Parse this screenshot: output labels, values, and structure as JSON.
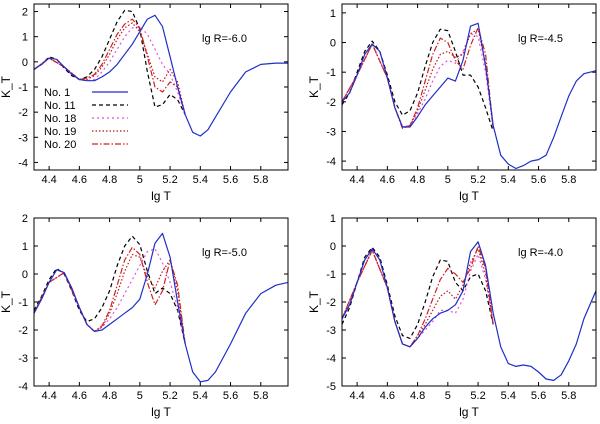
{
  "legend_entries": [
    {
      "label": "No. 1",
      "color": "#1f2fc8",
      "dash": ""
    },
    {
      "label": "No. 11",
      "color": "#000000",
      "dash": "4,3"
    },
    {
      "label": "No. 18",
      "color": "#e050e0",
      "dash": "2,3"
    },
    {
      "label": "No. 19",
      "color": "#c01818",
      "dash": "1.5,2"
    },
    {
      "label": "No. 20",
      "color": "#d02020",
      "dash": "6,2,1.5,2"
    }
  ],
  "chart_data": [
    {
      "type": "line",
      "panel": "top-left",
      "annotation": "lg R=-6.0",
      "xlabel": "lg T",
      "ylabel": "K_T",
      "xlim": [
        4.3,
        5.98
      ],
      "ylim": [
        -4.3,
        2.3
      ],
      "xticks": [
        "4.4",
        "4.6",
        "4.8",
        "5",
        "5.2",
        "5.4",
        "5.6",
        "5.8"
      ],
      "yticks": [
        "-4",
        "-3",
        "-2",
        "-1",
        "0",
        "1",
        "2"
      ],
      "show_legend": true,
      "series": [
        {
          "name": "No. 1",
          "x": [
            4.3,
            4.35,
            4.4,
            4.45,
            4.5,
            4.55,
            4.6,
            4.65,
            4.7,
            4.75,
            4.8,
            4.85,
            4.9,
            4.95,
            5.0,
            5.05,
            5.1,
            5.15,
            5.2,
            5.25,
            5.3,
            5.35,
            5.4,
            5.45,
            5.5,
            5.6,
            5.7,
            5.8,
            5.9,
            5.98
          ],
          "y": [
            -0.3,
            -0.1,
            0.15,
            0.1,
            -0.2,
            -0.5,
            -0.7,
            -0.75,
            -0.75,
            -0.6,
            -0.4,
            -0.1,
            0.3,
            0.7,
            1.2,
            1.7,
            1.85,
            1.4,
            0.2,
            -1.0,
            -2.1,
            -2.8,
            -2.95,
            -2.7,
            -2.2,
            -1.2,
            -0.4,
            -0.1,
            -0.05,
            -0.05
          ]
        },
        {
          "name": "No. 11",
          "x": [
            4.3,
            4.35,
            4.4,
            4.45,
            4.5,
            4.55,
            4.6,
            4.65,
            4.7,
            4.75,
            4.8,
            4.85,
            4.9,
            4.95,
            5.0,
            5.05,
            5.1,
            5.15,
            5.2,
            5.25,
            5.3
          ],
          "y": [
            -0.3,
            -0.1,
            0.2,
            0.1,
            -0.25,
            -0.55,
            -0.7,
            -0.6,
            -0.3,
            0.2,
            0.9,
            1.6,
            2.05,
            2.0,
            1.3,
            -0.4,
            -1.8,
            -1.7,
            -1.3,
            -1.5,
            -2.1
          ]
        },
        {
          "name": "No. 18",
          "x": [
            4.3,
            4.4,
            4.5,
            4.6,
            4.65,
            4.7,
            4.75,
            4.8,
            4.85,
            4.9,
            4.95,
            5.0,
            5.05,
            5.1,
            5.15,
            5.2,
            5.25,
            5.3
          ],
          "y": [
            -0.3,
            0.15,
            -0.2,
            -0.7,
            -0.75,
            -0.7,
            -0.4,
            0.0,
            0.5,
            1.0,
            1.35,
            1.4,
            1.1,
            0.5,
            -0.1,
            -0.5,
            -1.2,
            -2.1
          ]
        },
        {
          "name": "No. 19",
          "x": [
            4.3,
            4.4,
            4.5,
            4.6,
            4.65,
            4.7,
            4.75,
            4.8,
            4.85,
            4.9,
            4.95,
            5.0,
            5.05,
            5.1,
            5.15,
            5.2,
            5.25,
            5.3
          ],
          "y": [
            -0.3,
            0.15,
            -0.2,
            -0.7,
            -0.7,
            -0.55,
            -0.2,
            0.3,
            0.9,
            1.35,
            1.55,
            1.2,
            0.3,
            -0.6,
            -0.8,
            -0.3,
            -0.8,
            -2.1
          ]
        },
        {
          "name": "No. 20",
          "x": [
            4.3,
            4.4,
            4.5,
            4.6,
            4.65,
            4.7,
            4.75,
            4.8,
            4.85,
            4.9,
            4.95,
            5.0,
            5.05,
            5.1,
            5.15,
            5.2,
            5.25,
            5.3
          ],
          "y": [
            -0.3,
            0.15,
            -0.2,
            -0.7,
            -0.65,
            -0.5,
            -0.1,
            0.5,
            1.1,
            1.5,
            1.7,
            1.35,
            0.2,
            -1.0,
            -1.2,
            -0.8,
            -1.0,
            -2.1
          ]
        }
      ]
    },
    {
      "type": "line",
      "panel": "top-right",
      "annotation": "lg R=-4.5",
      "xlabel": "lg T",
      "ylabel": "K_T",
      "xlim": [
        4.3,
        5.98
      ],
      "ylim": [
        -4.3,
        1.3
      ],
      "xticks": [
        "4.4",
        "4.6",
        "4.8",
        "5",
        "5.2",
        "5.4",
        "5.6",
        "5.8"
      ],
      "yticks": [
        "-4",
        "-3",
        "-2",
        "-1",
        "0",
        "1"
      ],
      "show_legend": false,
      "series": [
        {
          "name": "No. 1",
          "x": [
            4.3,
            4.35,
            4.4,
            4.45,
            4.5,
            4.55,
            4.6,
            4.65,
            4.7,
            4.75,
            4.8,
            4.85,
            4.9,
            4.95,
            5.0,
            5.05,
            5.1,
            5.15,
            5.2,
            5.25,
            5.3,
            5.35,
            5.4,
            5.45,
            5.5,
            5.55,
            5.6,
            5.65,
            5.7,
            5.75,
            5.8,
            5.85,
            5.9,
            5.98
          ],
          "y": [
            -2.0,
            -1.7,
            -1.1,
            -0.4,
            -0.05,
            -0.3,
            -1.2,
            -2.2,
            -2.85,
            -2.85,
            -2.5,
            -2.1,
            -1.8,
            -1.5,
            -1.2,
            -1.3,
            -0.6,
            0.55,
            0.65,
            -0.8,
            -2.8,
            -3.8,
            -4.1,
            -4.25,
            -4.15,
            -4.0,
            -3.95,
            -3.8,
            -3.2,
            -2.5,
            -1.8,
            -1.3,
            -1.05,
            -0.95
          ]
        },
        {
          "name": "No. 11",
          "x": [
            4.3,
            4.35,
            4.4,
            4.45,
            4.5,
            4.55,
            4.6,
            4.65,
            4.7,
            4.75,
            4.8,
            4.85,
            4.9,
            4.95,
            5.0,
            5.05,
            5.1,
            5.15,
            5.2,
            5.25,
            5.3
          ],
          "y": [
            -2.1,
            -1.7,
            -1.0,
            -0.3,
            0.05,
            -0.3,
            -1.1,
            -2.0,
            -2.45,
            -2.3,
            -1.7,
            -0.8,
            0.0,
            0.45,
            0.4,
            -0.3,
            -1.1,
            -1.1,
            -1.5,
            -2.2,
            -3.0
          ]
        },
        {
          "name": "No. 18",
          "x": [
            4.3,
            4.4,
            4.5,
            4.6,
            4.65,
            4.7,
            4.75,
            4.8,
            4.85,
            4.9,
            4.95,
            5.0,
            5.05,
            5.1,
            5.15,
            5.2,
            5.25,
            5.3
          ],
          "y": [
            -2.0,
            -1.1,
            -0.05,
            -1.2,
            -2.2,
            -2.85,
            -2.8,
            -2.4,
            -1.9,
            -1.3,
            -0.8,
            -0.6,
            -0.7,
            -0.3,
            0.3,
            0.2,
            -1.0,
            -2.9
          ]
        },
        {
          "name": "No. 19",
          "x": [
            4.3,
            4.4,
            4.5,
            4.6,
            4.65,
            4.7,
            4.75,
            4.8,
            4.85,
            4.9,
            4.95,
            5.0,
            5.05,
            5.1,
            5.15,
            5.2,
            5.25,
            5.3
          ],
          "y": [
            -2.0,
            -1.1,
            -0.05,
            -1.2,
            -2.2,
            -2.85,
            -2.8,
            -2.3,
            -1.6,
            -0.9,
            -0.4,
            -0.3,
            -0.5,
            -0.4,
            0.3,
            0.45,
            -0.7,
            -2.9
          ]
        },
        {
          "name": "No. 20",
          "x": [
            4.3,
            4.4,
            4.5,
            4.6,
            4.65,
            4.7,
            4.75,
            4.8,
            4.85,
            4.9,
            4.95,
            5.0,
            5.05,
            5.1,
            5.15,
            5.2,
            5.25,
            5.3
          ],
          "y": [
            -2.0,
            -1.1,
            -0.05,
            -1.2,
            -2.2,
            -2.9,
            -2.8,
            -2.2,
            -1.3,
            -0.4,
            0.15,
            0.0,
            -0.6,
            -0.9,
            -0.1,
            0.5,
            -0.4,
            -2.9
          ]
        }
      ]
    },
    {
      "type": "line",
      "panel": "bottom-left",
      "annotation": "lg R=-5.0",
      "xlabel": "lg T",
      "ylabel": "K_T",
      "xlim": [
        4.3,
        5.98
      ],
      "ylim": [
        -4.0,
        2.0
      ],
      "xticks": [
        "4.4",
        "4.6",
        "4.8",
        "5",
        "5.2",
        "5.4",
        "5.6",
        "5.8"
      ],
      "yticks": [
        "-4",
        "-3",
        "-2",
        "-1",
        "0",
        "1",
        "2"
      ],
      "show_legend": false,
      "series": [
        {
          "name": "No. 1",
          "x": [
            4.3,
            4.35,
            4.4,
            4.45,
            4.5,
            4.55,
            4.6,
            4.65,
            4.7,
            4.75,
            4.8,
            4.85,
            4.9,
            4.95,
            5.0,
            5.05,
            5.1,
            5.15,
            5.2,
            5.25,
            5.3,
            5.35,
            5.4,
            5.45,
            5.5,
            5.6,
            5.7,
            5.8,
            5.9,
            5.98
          ],
          "y": [
            -1.4,
            -0.9,
            -0.3,
            0.15,
            0.05,
            -0.5,
            -1.2,
            -1.8,
            -2.05,
            -2.0,
            -1.8,
            -1.6,
            -1.4,
            -1.2,
            -0.9,
            0.0,
            1.1,
            1.45,
            0.6,
            -1.0,
            -2.5,
            -3.5,
            -3.85,
            -3.8,
            -3.5,
            -2.5,
            -1.4,
            -0.7,
            -0.4,
            -0.3
          ]
        },
        {
          "name": "No. 11",
          "x": [
            4.3,
            4.35,
            4.4,
            4.45,
            4.5,
            4.55,
            4.6,
            4.65,
            4.7,
            4.75,
            4.8,
            4.85,
            4.9,
            4.95,
            5.0,
            5.05,
            5.1,
            5.15,
            5.2,
            5.25,
            5.3
          ],
          "y": [
            -1.3,
            -0.8,
            -0.2,
            0.2,
            0.0,
            -0.6,
            -1.3,
            -1.7,
            -1.6,
            -1.2,
            -0.6,
            0.3,
            1.0,
            1.35,
            1.05,
            0.1,
            -0.7,
            -0.5,
            -0.7,
            -1.3,
            -2.5
          ]
        },
        {
          "name": "No. 18",
          "x": [
            4.3,
            4.4,
            4.5,
            4.6,
            4.65,
            4.7,
            4.75,
            4.8,
            4.85,
            4.9,
            4.95,
            5.0,
            5.05,
            5.1,
            5.15,
            5.2,
            5.25,
            5.3
          ],
          "y": [
            -1.4,
            -0.3,
            0.05,
            -1.2,
            -1.8,
            -2.05,
            -1.9,
            -1.6,
            -1.2,
            -0.7,
            -0.2,
            0.3,
            0.8,
            0.9,
            0.4,
            -0.3,
            -1.2,
            -2.5
          ]
        },
        {
          "name": "No. 19",
          "x": [
            4.3,
            4.4,
            4.5,
            4.6,
            4.65,
            4.7,
            4.75,
            4.8,
            4.85,
            4.9,
            4.95,
            5.0,
            5.05,
            5.1,
            5.15,
            5.2,
            5.25,
            5.3
          ],
          "y": [
            -1.4,
            -0.3,
            0.05,
            -1.2,
            -1.8,
            -2.05,
            -1.9,
            -1.4,
            -0.7,
            0.1,
            0.7,
            0.6,
            -0.1,
            -0.5,
            0.1,
            0.5,
            -0.6,
            -2.5
          ]
        },
        {
          "name": "No. 20",
          "x": [
            4.3,
            4.4,
            4.5,
            4.6,
            4.65,
            4.7,
            4.75,
            4.8,
            4.85,
            4.9,
            4.95,
            5.0,
            5.05,
            5.1,
            5.15,
            5.2,
            5.25,
            5.3
          ],
          "y": [
            -1.4,
            -0.3,
            0.05,
            -1.2,
            -1.8,
            -2.05,
            -1.85,
            -1.3,
            -0.4,
            0.5,
            0.95,
            0.7,
            -0.3,
            -1.1,
            -0.6,
            0.5,
            -0.4,
            -2.5
          ]
        }
      ]
    },
    {
      "type": "line",
      "panel": "bottom-right",
      "annotation": "lg R=-4.0",
      "xlabel": "lg T",
      "ylabel": "K_T",
      "xlim": [
        4.3,
        5.98
      ],
      "ylim": [
        -5.0,
        1.0
      ],
      "xticks": [
        "4.4",
        "4.6",
        "4.8",
        "5",
        "5.2",
        "5.4",
        "5.6",
        "5.8"
      ],
      "yticks": [
        "-5",
        "-4",
        "-3",
        "-2",
        "-1",
        "0",
        "1"
      ],
      "show_legend": false,
      "series": [
        {
          "name": "No. 1",
          "x": [
            4.3,
            4.35,
            4.4,
            4.45,
            4.5,
            4.55,
            4.6,
            4.65,
            4.7,
            4.75,
            4.8,
            4.85,
            4.9,
            4.95,
            5.0,
            5.05,
            5.1,
            5.15,
            5.2,
            5.25,
            5.3,
            5.35,
            5.4,
            5.45,
            5.5,
            5.55,
            5.6,
            5.65,
            5.7,
            5.75,
            5.8,
            5.85,
            5.9,
            5.98
          ],
          "y": [
            -2.6,
            -2.1,
            -1.3,
            -0.5,
            -0.1,
            -0.5,
            -1.5,
            -2.7,
            -3.5,
            -3.6,
            -3.3,
            -2.9,
            -2.6,
            -2.4,
            -2.3,
            -2.1,
            -1.6,
            -0.2,
            0.15,
            -0.7,
            -2.4,
            -3.6,
            -4.2,
            -4.3,
            -4.25,
            -4.3,
            -4.5,
            -4.75,
            -4.8,
            -4.6,
            -4.1,
            -3.5,
            -2.6,
            -1.6
          ]
        },
        {
          "name": "No. 11",
          "x": [
            4.3,
            4.35,
            4.4,
            4.45,
            4.5,
            4.55,
            4.6,
            4.65,
            4.7,
            4.75,
            4.8,
            4.85,
            4.9,
            4.95,
            5.0,
            5.05,
            5.1,
            5.15,
            5.2,
            5.25,
            5.3
          ],
          "y": [
            -2.8,
            -2.2,
            -1.3,
            -0.4,
            -0.05,
            -0.4,
            -1.4,
            -2.5,
            -3.2,
            -3.3,
            -2.8,
            -2.0,
            -1.1,
            -0.5,
            -0.55,
            -1.3,
            -1.6,
            -1.1,
            -1.0,
            -1.6,
            -2.8
          ]
        },
        {
          "name": "No. 18",
          "x": [
            4.3,
            4.4,
            4.5,
            4.6,
            4.65,
            4.7,
            4.75,
            4.8,
            4.85,
            4.9,
            4.95,
            5.0,
            5.05,
            5.1,
            5.15,
            5.2,
            5.25,
            5.3
          ],
          "y": [
            -2.6,
            -1.3,
            -0.15,
            -1.5,
            -2.7,
            -3.5,
            -3.6,
            -3.3,
            -3.0,
            -2.7,
            -2.3,
            -2.3,
            -2.4,
            -1.9,
            -0.9,
            -0.3,
            -1.2,
            -2.8
          ]
        },
        {
          "name": "No. 19",
          "x": [
            4.3,
            4.4,
            4.5,
            4.6,
            4.65,
            4.7,
            4.75,
            4.8,
            4.85,
            4.9,
            4.95,
            5.0,
            5.05,
            5.1,
            5.15,
            5.2,
            5.25,
            5.3
          ],
          "y": [
            -2.6,
            -1.3,
            -0.15,
            -1.5,
            -2.7,
            -3.5,
            -3.6,
            -3.2,
            -2.8,
            -2.3,
            -1.8,
            -1.6,
            -1.9,
            -1.4,
            -0.6,
            -0.1,
            -1.0,
            -2.8
          ]
        },
        {
          "name": "No. 20",
          "x": [
            4.3,
            4.4,
            4.5,
            4.6,
            4.65,
            4.7,
            4.75,
            4.8,
            4.85,
            4.9,
            4.95,
            5.0,
            5.05,
            5.1,
            5.15,
            5.2,
            5.25,
            5.3
          ],
          "y": [
            -2.6,
            -1.3,
            -0.15,
            -1.5,
            -2.7,
            -3.5,
            -3.6,
            -3.2,
            -2.6,
            -1.9,
            -1.2,
            -0.8,
            -1.0,
            -1.3,
            -0.8,
            0.0,
            -0.8,
            -2.8
          ]
        }
      ]
    }
  ]
}
